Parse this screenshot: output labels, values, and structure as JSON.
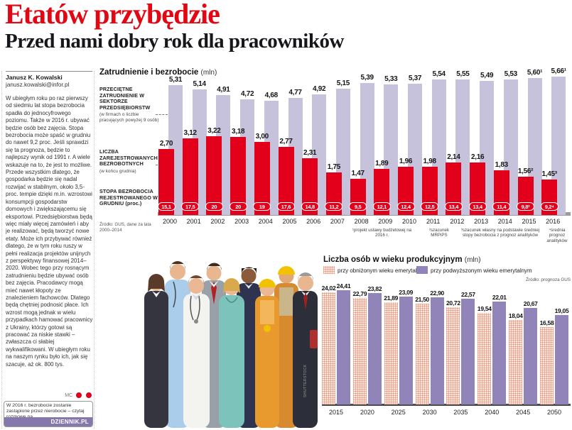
{
  "header": {
    "title": "Etatów przybędzie",
    "subtitle": "Przed nami dobry rok dla pracowników"
  },
  "article": {
    "author": "Janusz K. Kowalski",
    "email": "janusz.kowalski@infor.pl",
    "body": "W ubiegłym roku po raz pierwszy od siedmiu lat stopa bezrobocia spadła do jednocyfrowego poziomu. Także w 2016 r. ubywać będzie osób bez zajęcia. Stopa bezrobocia może spaść w grudniu do nawet 9,2 proc. Jeśli sprawdzi się ta prognoza, będzie to najlepszy wynik od 1991 r. A wiele wskazuje na to, że jest to możliwe. Przede wszystkim dlatego, że gospodarka będzie się nadal rozwijać w stabilnym, około 3,5-proc. tempie dzięki m.in. wzrostowi konsumpcji gospodarstw domowych i zwiększającemu się eksportowi. Przedsiębiorstwa będą więc miały więcej zamówień i aby je realizować, będą tworzyć nowe etaty. Może ich przybywać również dlatego, że w tym roku ruszy w pełni realizacja projektów unijnych z perspektywy finansowej 2014–2020. Wobec tego przy rosnącym zatrudnieniu będzie ubywać osób bez zajęcia. Pracodawcy mogą mieć nawet kłopoty ze znalezieniem fachowców. Dlatego będą chętniej podnosić płace. Ich wzrost mogą jednak w wielu przypadkach hamować pracownicy z Ukrainy, którzy gotowi są pracować za niskie stawki – zwłaszcza ci słabiej wykwalifikowani. W ubiegłym roku na naszym rynku było ich, jak się szacuje, aż ok. 800 tys.",
    "signoff": "MC",
    "promo_text": "W 2016 r. bezrobocie zostanie zastąpione przez nierobocie – czytaj rozmowę na",
    "promo_brand": "DZIENNIK.PL"
  },
  "photo_credit": "SHUTTERSTOCK",
  "colors": {
    "headline_red": "#e30613",
    "bar_red": "#e2001a",
    "bar_lavender": "#c6c2dc",
    "bar_purple": "#9184b8",
    "bar_pink_hatch": "#fce8df",
    "promo_purple": "#8478ad"
  },
  "chart_data": [
    {
      "type": "bar",
      "title": "Zatrudnienie i bezrobocie",
      "unit": "(mln)",
      "source": "Źródło: GUS, dane za lata 2000–2014",
      "categories": [
        "2000",
        "2001",
        "2002",
        "2003",
        "2004",
        "2005",
        "2006",
        "2007",
        "2008",
        "2009",
        "2010",
        "2011",
        "2012",
        "2013",
        "2014",
        "2015",
        "2016"
      ],
      "series": [
        {
          "name": "PRZECIĘTNE ZATRUDNIENIE W SEKTORZE PRZEDSIĘBIORSTW",
          "note": "(w firmach o liczbie pracujących powyżej 9 osób)",
          "color": "#c6c2dc",
          "values": [
            5.31,
            5.14,
            4.91,
            4.72,
            4.68,
            4.77,
            4.92,
            5.15,
            5.39,
            5.33,
            5.37,
            5.54,
            5.55,
            5.49,
            5.53,
            5.6,
            5.66
          ],
          "labels": [
            "5,31",
            "5,14",
            "4,91",
            "4,72",
            "4,68",
            "4,77",
            "4,92",
            "5,15",
            "5,39",
            "5,33",
            "5,37",
            "5,54",
            "5,55",
            "5,49",
            "5,53",
            "5,60¹",
            "5,66¹"
          ]
        },
        {
          "name": "LICZBA ZAREJESTROWANYCH BEZROBOTNYCH",
          "note": "(w końcu grudnia)",
          "color": "#e2001a",
          "values": [
            2.7,
            3.12,
            3.22,
            3.18,
            3.0,
            2.77,
            2.31,
            1.75,
            1.47,
            1.89,
            1.96,
            1.98,
            2.14,
            2.16,
            1.83,
            1.56,
            1.45
          ],
          "labels": [
            "2,70",
            "3,12",
            "3,22",
            "3,18",
            "3,00",
            "2,77",
            "2,31",
            "1,75",
            "1,47",
            "1,89",
            "1,96",
            "1,98",
            "2,14",
            "2,16",
            "1,83",
            "1,56²",
            "1,45³"
          ]
        },
        {
          "name": "STOPA BEZROBOCIA REJESTROWANEGO W GRUDNIU (proc.)",
          "note": "",
          "color": "#e2001a",
          "labels": [
            "15,1",
            "17,5",
            "20",
            "20",
            "19",
            "17,6",
            "14,8",
            "11,2",
            "9,5",
            "12,1",
            "12,4",
            "12,5",
            "13,4",
            "13,4",
            "11,4",
            "9,8²",
            "9,2⁴"
          ]
        }
      ],
      "footnotes": [
        "¹projekt ustawy budżetowej na 2016 r.",
        "²szacunek MRPiPS",
        "³szacunek własny na podstawie średniej stopy bezrobocia z prognoz analityków",
        "⁴średnia prognoz analityków"
      ],
      "ylim": [
        0,
        6
      ]
    },
    {
      "type": "bar",
      "title": "Liczba osób w wieku produkcyjnym",
      "unit": "(mln)",
      "source": "Źródło: prognoza GUS",
      "categories": [
        "2015",
        "2020",
        "2025",
        "2030",
        "2035",
        "2040",
        "2045",
        "2050"
      ],
      "series": [
        {
          "name": "przy obniżonym wieku emerytalnym",
          "color": "pink-hatch",
          "values": [
            24.02,
            22.79,
            21.89,
            21.5,
            20.72,
            19.54,
            18.04,
            16.58
          ],
          "labels": [
            "24,02",
            "22,79",
            "21,89",
            "21,50",
            "20,72",
            "19,54",
            "18,04",
            "16,58"
          ]
        },
        {
          "name": "przy podwyższonym wieku emerytalnym",
          "color": "#9184b8",
          "values": [
            24.41,
            23.82,
            23.09,
            22.9,
            22.57,
            22.01,
            20.67,
            19.05
          ],
          "labels": [
            "24,41",
            "23,82",
            "23,09",
            "22,90",
            "22,57",
            "22,01",
            "20,67",
            "19,05"
          ]
        }
      ],
      "ylim": [
        0,
        26
      ]
    }
  ]
}
